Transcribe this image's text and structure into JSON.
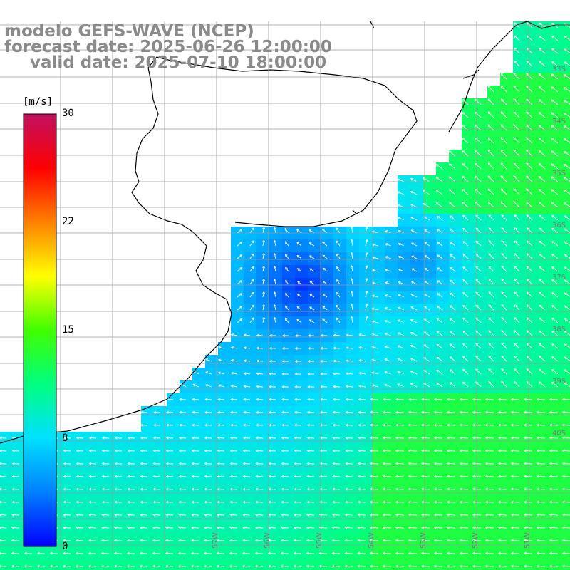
{
  "title": {
    "line1": "modelo GEFS-WAVE (NCEP)",
    "line2": "forecast date: 2025-06-26 12:00:00",
    "line3": "valid date: 2025-07-10 18:00:00"
  },
  "colorbar": {
    "unit": "[m/s]",
    "ticks": [
      "30",
      "22",
      "15",
      "8",
      "0"
    ],
    "min": 0,
    "max": 30,
    "colors": [
      "#0000ff",
      "#0080ff",
      "#00e0ff",
      "#00ff80",
      "#40ff00",
      "#ffff00",
      "#ff8000",
      "#ff0000",
      "#c01060"
    ]
  },
  "map": {
    "right_lat_labels": [
      "33S",
      "34S",
      "35S",
      "36S",
      "37S",
      "38S",
      "39S",
      "40S"
    ],
    "bottom_lon_labels": [
      "57W",
      "56W",
      "55W",
      "54W",
      "53W",
      "52W",
      "51W"
    ],
    "land_color": "#ffffff",
    "arrow_color": "#ffffff"
  }
}
